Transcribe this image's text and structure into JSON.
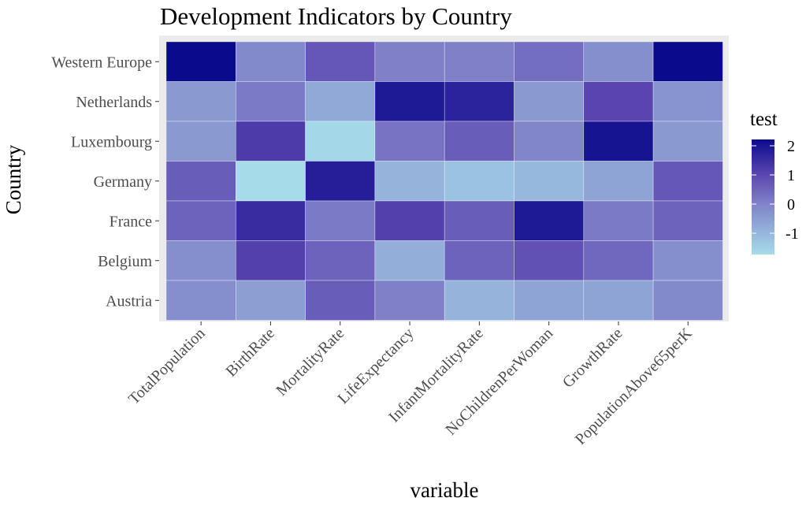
{
  "chart_data": {
    "type": "heatmap",
    "title": "Development Indicators by Country",
    "xlabel": "variable",
    "ylabel": "Country",
    "x": [
      "TotalPopulation",
      "BirthRate",
      "MortalityRate",
      "LifeExpectancy",
      "InfantMortalityRate",
      "NoChildrenPerWoman",
      "GrowthRate",
      "PopulationAbove65perK"
    ],
    "y": [
      "Western Europe",
      "Netherlands",
      "Luxembourg",
      "Germany",
      "France",
      "Belgium",
      "Austria"
    ],
    "values": [
      [
        2.2,
        -0.2,
        0.7,
        0.0,
        0.0,
        0.3,
        -0.3,
        2.2
      ],
      [
        -0.5,
        0.1,
        -0.8,
        1.9,
        1.7,
        -0.5,
        1.0,
        -0.4
      ],
      [
        -0.5,
        1.2,
        -1.7,
        0.2,
        0.6,
        -0.1,
        2.0,
        -0.5
      ],
      [
        0.6,
        -1.8,
        1.8,
        -1.0,
        -1.3,
        -1.1,
        -0.7,
        0.7
      ],
      [
        0.5,
        1.5,
        0.1,
        1.1,
        0.6,
        1.9,
        0.1,
        0.5
      ],
      [
        -0.3,
        1.1,
        0.5,
        -0.9,
        0.5,
        0.8,
        0.4,
        -0.3
      ],
      [
        -0.3,
        -0.6,
        0.6,
        0.0,
        -1.0,
        -0.7,
        -0.7,
        -0.2
      ]
    ],
    "legend": {
      "title": "test",
      "ticks": [
        "2",
        "1",
        "0",
        "-1"
      ],
      "tick_values": [
        2,
        1,
        0,
        -1
      ],
      "range": [
        -1.8,
        2.2
      ],
      "position": "right"
    },
    "colors": {
      "low": "#a6dcea",
      "mid": "#7f80c8",
      "high": "#0a0a8c",
      "panel": "#ebebeb"
    }
  }
}
